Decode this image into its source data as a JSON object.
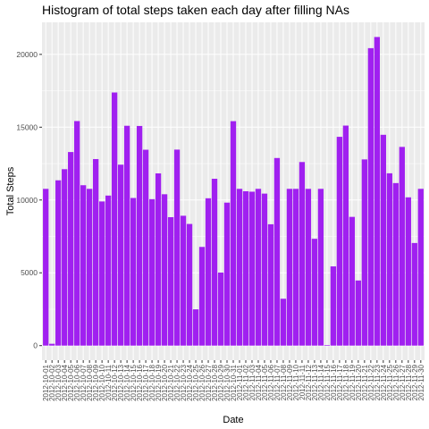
{
  "chart_data": {
    "type": "bar",
    "title": "Histogram of total steps taken each day after filling NAs",
    "xlabel": "Date",
    "ylabel": "Total Steps",
    "ylim": [
      -1000,
      22200
    ],
    "yticks": [
      0,
      5000,
      10000,
      15000,
      20000
    ],
    "bar_color": "#A020F0",
    "panel_color": "#EBEBEB",
    "grid": true,
    "legend": "none",
    "categories": [
      "2012-10-01",
      "2012-10-02",
      "2012-10-03",
      "2012-10-04",
      "2012-10-05",
      "2012-10-06",
      "2012-10-07",
      "2012-10-08",
      "2012-10-09",
      "2012-10-10",
      "2012-10-11",
      "2012-10-12",
      "2012-10-13",
      "2012-10-14",
      "2012-10-15",
      "2012-10-16",
      "2012-10-17",
      "2012-10-18",
      "2012-10-19",
      "2012-10-20",
      "2012-10-21",
      "2012-10-22",
      "2012-10-23",
      "2012-10-24",
      "2012-10-25",
      "2012-10-26",
      "2012-10-27",
      "2012-10-28",
      "2012-10-29",
      "2012-10-30",
      "2012-10-31",
      "2012-11-01",
      "2012-11-02",
      "2012-11-03",
      "2012-11-04",
      "2012-11-05",
      "2012-11-06",
      "2012-11-07",
      "2012-11-08",
      "2012-11-09",
      "2012-11-10",
      "2012-11-11",
      "2012-11-12",
      "2012-11-13",
      "2012-11-14",
      "2012-11-15",
      "2012-11-16",
      "2012-11-17",
      "2012-11-18",
      "2012-11-19",
      "2012-11-20",
      "2012-11-21",
      "2012-11-22",
      "2012-11-23",
      "2012-11-24",
      "2012-11-25",
      "2012-11-26",
      "2012-11-27",
      "2012-11-28",
      "2012-11-29",
      "2012-11-30"
    ],
    "values": [
      10766,
      126,
      11352,
      12116,
      13294,
      15420,
      11015,
      10766,
      12811,
      9900,
      10304,
      17382,
      12426,
      15098,
      10139,
      15084,
      13452,
      10056,
      11829,
      10395,
      8821,
      13460,
      8918,
      8355,
      2492,
      6778,
      10119,
      11458,
      5018,
      9819,
      15414,
      10766,
      10600,
      10571,
      10766,
      10439,
      8334,
      12883,
      3219,
      10766,
      10766,
      12608,
      10765,
      7336,
      10766,
      41,
      5441,
      14339,
      15110,
      8841,
      4472,
      12787,
      20427,
      21194,
      14478,
      11834,
      11162,
      13646,
      10183,
      7047,
      10766
    ],
    "xtick_labels": [
      "2012-10-01",
      "2012-10-02",
      "2012-10-03",
      "2012-10-04",
      "2012-10-05",
      "2012-10-06",
      "2012-10-07",
      "2012-10-08",
      "2012-10-09",
      "2012-10-10",
      "2012-10-11",
      "2012-10-12",
      "2012-10-13",
      "2012-10-14",
      "2012-10-15",
      "2012-10-16",
      "2012-10-17",
      "2012-10-18",
      "2012-10-19",
      "2012-10-20",
      "2012-10-21",
      "2012-10-22",
      "2012-10-23",
      "2012-10-24",
      "2012-10-25",
      "2012-10-26",
      "2012-10-27",
      "2012-10-28",
      "2012-10-29",
      "2012-10-30",
      "2012-10-31",
      "2012-11-01",
      "2012-11-02",
      "2012-11-03",
      "2012-11-04",
      "2012-11-05",
      "2012-11-06",
      "2012-11-07",
      "2012-11-08",
      "2012-11-09",
      "2012-11-10",
      "2012-11-11",
      "2012-11-12",
      "2012-11-13",
      "2012-11-14",
      "2012-11-15",
      "2012-11-16",
      "2012-11-17",
      "2012-11-18",
      "2012-11-19",
      "2012-11-20",
      "2012-11-21",
      "2012-11-22",
      "2012-11-23",
      "2012-11-24",
      "2012-11-25",
      "2012-11-26",
      "2012-11-27",
      "2012-11-28",
      "2012-11-29",
      "2012-11-30"
    ]
  }
}
